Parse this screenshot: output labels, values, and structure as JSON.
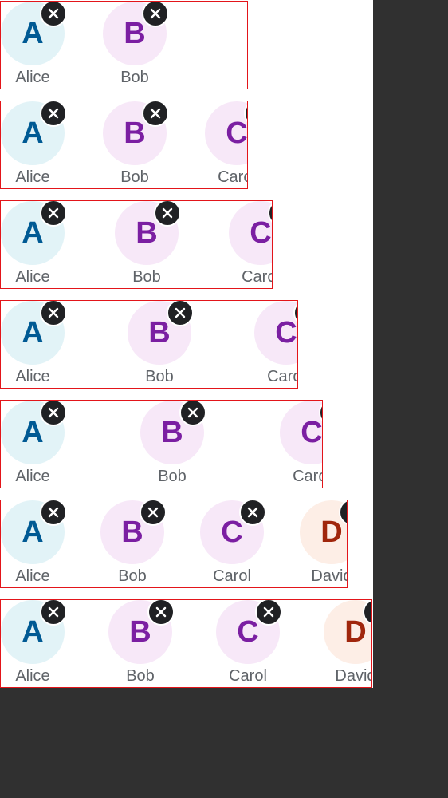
{
  "close_icon": "x-icon",
  "people": {
    "alice": {
      "initial": "A",
      "name": "Alice",
      "bg": "#e2f3f7",
      "fg": "#005a94"
    },
    "bob": {
      "initial": "B",
      "name": "Bob",
      "bg": "#f7e8f8",
      "fg": "#7b1fa2"
    },
    "carol": {
      "initial": "C",
      "name": "Carol",
      "bg": "#f7e8f8",
      "fg": "#7b1fa2"
    },
    "david": {
      "initial": "D",
      "name": "David",
      "bg": "#fdeee6",
      "fg": "#a0260c"
    }
  },
  "rows": [
    [
      "alice",
      "bob"
    ],
    [
      "alice",
      "bob",
      "carol"
    ],
    [
      "alice",
      "bob",
      "carol"
    ],
    [
      "alice",
      "bob",
      "carol"
    ],
    [
      "alice",
      "bob",
      "carol"
    ],
    [
      "alice",
      "bob",
      "carol",
      "david"
    ],
    [
      "alice",
      "bob",
      "carol",
      "david"
    ]
  ]
}
